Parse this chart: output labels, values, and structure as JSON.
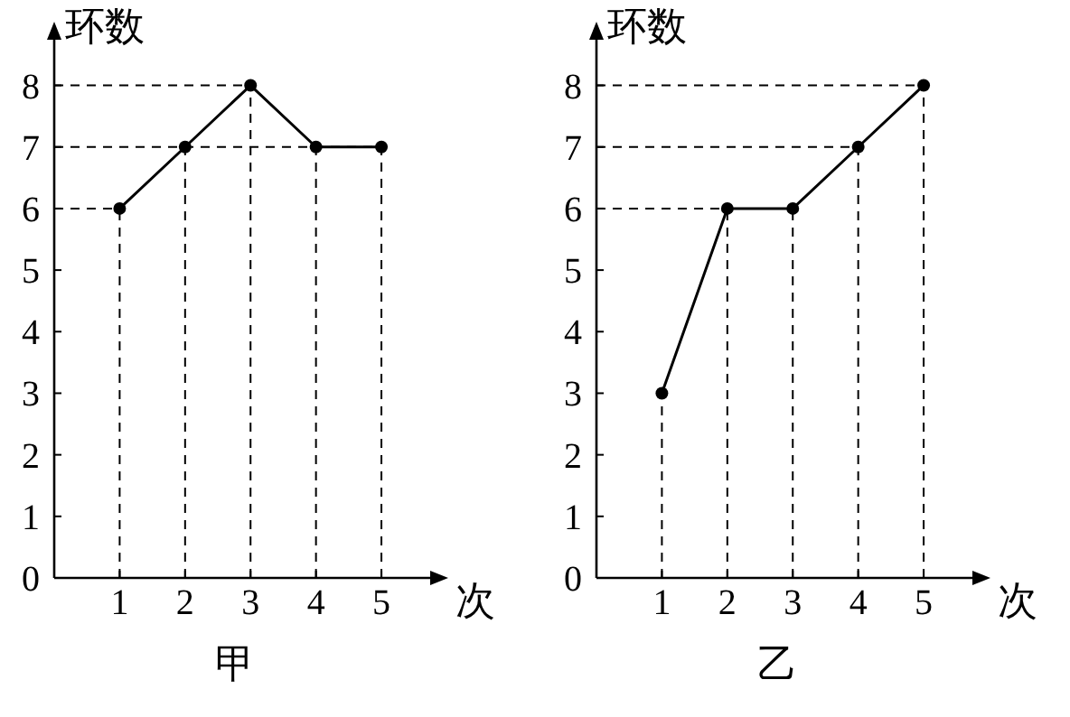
{
  "chart_data": [
    {
      "type": "line",
      "title": "甲",
      "xlabel": "次",
      "ylabel": "环数",
      "x": [
        1,
        2,
        3,
        4,
        5
      ],
      "values": [
        6,
        7,
        8,
        7,
        7
      ],
      "color": "#000000",
      "marker": "circle",
      "line_style": "solid",
      "xlim": [
        0,
        5.8
      ],
      "ylim": [
        0,
        8.8
      ],
      "xticks": [
        1,
        2,
        3,
        4,
        5
      ],
      "yticks": [
        0,
        1,
        2,
        3,
        4,
        5,
        6,
        7,
        8
      ],
      "ref_lines": [
        {
          "axis": "y",
          "value": 6,
          "line_style": "dashed"
        },
        {
          "axis": "y",
          "value": 7,
          "line_style": "dashed"
        },
        {
          "axis": "y",
          "value": 8,
          "line_style": "dashed"
        },
        {
          "axis": "x",
          "value": 1,
          "line_style": "dashed"
        },
        {
          "axis": "x",
          "value": 2,
          "line_style": "dashed"
        },
        {
          "axis": "x",
          "value": 3,
          "line_style": "dashed"
        },
        {
          "axis": "x",
          "value": 4,
          "line_style": "dashed"
        },
        {
          "axis": "x",
          "value": 5,
          "line_style": "dashed"
        }
      ]
    },
    {
      "type": "line",
      "title": "乙",
      "xlabel": "次",
      "ylabel": "环数",
      "x": [
        1,
        2,
        3,
        4,
        5
      ],
      "values": [
        3,
        6,
        6,
        7,
        8
      ],
      "color": "#000000",
      "marker": "circle",
      "line_style": "solid",
      "xlim": [
        0,
        5.8
      ],
      "ylim": [
        0,
        8.8
      ],
      "xticks": [
        1,
        2,
        3,
        4,
        5
      ],
      "yticks": [
        0,
        1,
        2,
        3,
        4,
        5,
        6,
        7,
        8
      ],
      "ref_lines": [
        {
          "axis": "y",
          "value": 6,
          "line_style": "dashed"
        },
        {
          "axis": "y",
          "value": 7,
          "line_style": "dashed"
        },
        {
          "axis": "y",
          "value": 8,
          "line_style": "dashed"
        },
        {
          "axis": "x",
          "value": 1,
          "line_style": "dashed"
        },
        {
          "axis": "x",
          "value": 2,
          "line_style": "dashed"
        },
        {
          "axis": "x",
          "value": 3,
          "line_style": "dashed"
        },
        {
          "axis": "x",
          "value": 4,
          "line_style": "dashed"
        },
        {
          "axis": "x",
          "value": 5,
          "line_style": "dashed"
        }
      ]
    }
  ]
}
